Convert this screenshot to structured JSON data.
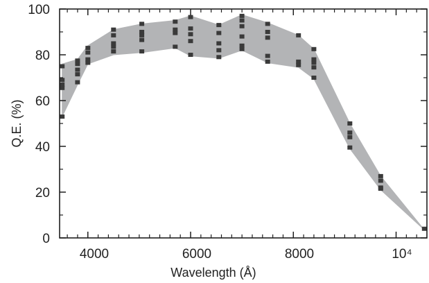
{
  "chart_data": {
    "type": "scatter",
    "title": "",
    "xlabel": "Wavelength (Å)",
    "ylabel": "Q.E. (%)",
    "xlim": [
      3450,
      10600
    ],
    "ylim": [
      0,
      100
    ],
    "grid": false,
    "x_ticks": [
      {
        "value": 4000,
        "label": "4000"
      },
      {
        "value": 6000,
        "label": "6000"
      },
      {
        "value": 8000,
        "label": "8000"
      },
      {
        "value": 10000,
        "label": "10⁴"
      }
    ],
    "x_minor_ticks": [
      3600,
      3800,
      4200,
      4400,
      4600,
      4800,
      5000,
      5200,
      5400,
      5600,
      5800,
      6200,
      6400,
      6600,
      6800,
      7000,
      7200,
      7400,
      7600,
      7800,
      8200,
      8400,
      8600,
      8800,
      9000,
      9200,
      9400,
      9600,
      9800,
      10200,
      10400
    ],
    "y_ticks": [
      {
        "value": 0,
        "label": "0"
      },
      {
        "value": 20,
        "label": "20"
      },
      {
        "value": 40,
        "label": "40"
      },
      {
        "value": 60,
        "label": "60"
      },
      {
        "value": 80,
        "label": "80"
      },
      {
        "value": 100,
        "label": "100"
      }
    ],
    "y_minor_ticks": [
      10,
      30,
      50,
      70,
      90
    ],
    "band_color": "#b3b4b6",
    "marker_color": "#3a3a3a",
    "band": {
      "x": [
        3500,
        3800,
        4000,
        4500,
        5050,
        5700,
        6000,
        6550,
        7000,
        7500,
        8100,
        8400,
        9100,
        9700,
        10550
      ],
      "upper": [
        76,
        78,
        84,
        91,
        93.5,
        95,
        97,
        93,
        97.5,
        94,
        88.5,
        82.5,
        50,
        27,
        3.5
      ],
      "lower": [
        53,
        67,
        76,
        80,
        81,
        83,
        79.5,
        78.5,
        82,
        76.5,
        74.5,
        69.5,
        39,
        21,
        3.5
      ]
    },
    "points": [
      {
        "x": 3500,
        "y": [
          75,
          69,
          67,
          65.5,
          53
        ]
      },
      {
        "x": 3800,
        "y": [
          77.5,
          76,
          73.5,
          71.5,
          68
        ]
      },
      {
        "x": 4000,
        "y": [
          83,
          81,
          78,
          76.5
        ]
      },
      {
        "x": 4500,
        "y": [
          91,
          88.5,
          85,
          83.5,
          81.5
        ]
      },
      {
        "x": 5050,
        "y": [
          93.5,
          90,
          88.5,
          86.5,
          81.5
        ]
      },
      {
        "x": 5700,
        "y": [
          94.5,
          91,
          89.5,
          83.5
        ]
      },
      {
        "x": 6000,
        "y": [
          96.5,
          91.5,
          89,
          86,
          80
        ]
      },
      {
        "x": 6550,
        "y": [
          93,
          89.5,
          85,
          82,
          79
        ]
      },
      {
        "x": 7000,
        "y": [
          97,
          95,
          92.5,
          88,
          84,
          82.5
        ]
      },
      {
        "x": 7500,
        "y": [
          93.5,
          90,
          87.5,
          79.5,
          77
        ]
      },
      {
        "x": 8100,
        "y": [
          88.5,
          77,
          75.5
        ]
      },
      {
        "x": 8400,
        "y": [
          82.5,
          78,
          76.5,
          74.5,
          70
        ]
      },
      {
        "x": 9100,
        "y": [
          50,
          46,
          44,
          39.5
        ]
      },
      {
        "x": 9700,
        "y": [
          27,
          25,
          22,
          21.5
        ]
      },
      {
        "x": 10550,
        "y": [
          4
        ]
      }
    ]
  }
}
